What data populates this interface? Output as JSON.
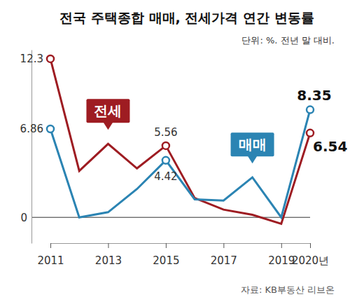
{
  "chart_data": {
    "type": "line",
    "title": "전국 주택종합 매매, 전세가격 연간 변동률",
    "subtitle": "단위: %. 전년 말 대비.",
    "source": "자료: KB부동산 리브온",
    "categories": [
      "2011",
      null,
      "2013",
      null,
      "2015",
      null,
      "2017",
      null,
      "2019",
      "2020년"
    ],
    "series": [
      {
        "name": "전세",
        "color": "#9e1c22",
        "marker": "circle",
        "values": [
          12.3,
          3.6,
          5.7,
          3.8,
          5.56,
          1.5,
          0.6,
          0.2,
          -0.5,
          6.54
        ],
        "value_labels": [
          "12.3",
          null,
          null,
          null,
          "5.56",
          null,
          null,
          null,
          null,
          "6.54"
        ]
      },
      {
        "name": "매매",
        "color": "#2b84b3",
        "marker": "circle",
        "values": [
          6.86,
          0,
          0.4,
          2.2,
          4.42,
          1.4,
          1.3,
          3.1,
          0,
          8.35
        ],
        "value_labels": [
          "6.86",
          null,
          null,
          null,
          "4.42",
          null,
          null,
          null,
          null,
          "8.35"
        ]
      }
    ],
    "ylim": [
      -2,
      13
    ],
    "yticks": [
      0
    ],
    "grid": true,
    "data_labels": true
  }
}
